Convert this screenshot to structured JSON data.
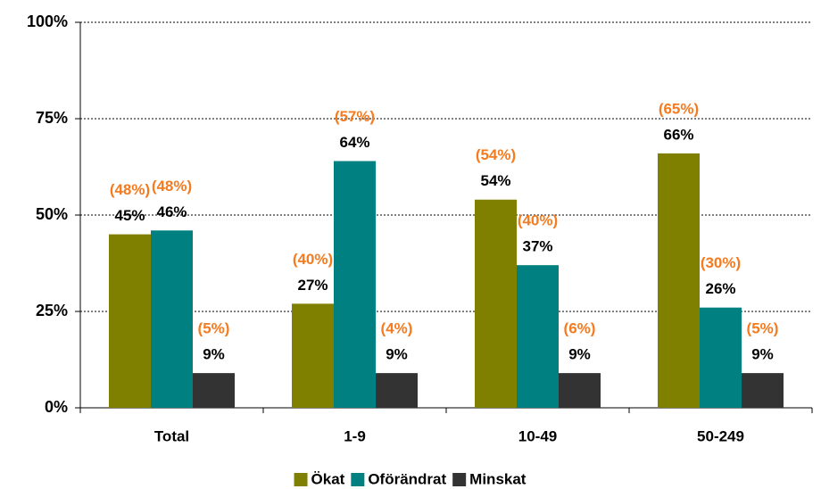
{
  "chart_data": {
    "type": "bar",
    "categories": [
      "Total",
      "1-9",
      "10-49",
      "50-249"
    ],
    "series": [
      {
        "name": "Ökat",
        "color": "#808000",
        "values": [
          45,
          27,
          54,
          66
        ],
        "value_labels": [
          "45%",
          "27%",
          "54%",
          "66%"
        ],
        "comparison_values": [
          48,
          40,
          54,
          65
        ],
        "comparison_labels": [
          "(48%)",
          "(40%)",
          "(54%)",
          "(65%)"
        ]
      },
      {
        "name": "Oförändrat",
        "color": "#008080",
        "values": [
          46,
          64,
          37,
          26
        ],
        "value_labels": [
          "46%",
          "64%",
          "37%",
          "26%"
        ],
        "comparison_values": [
          48,
          57,
          40,
          30
        ],
        "comparison_labels": [
          "(48%)",
          "(57%)",
          "(40%)",
          "(30%)"
        ]
      },
      {
        "name": "Minskat",
        "color": "#333333",
        "values": [
          9,
          9,
          9,
          9
        ],
        "value_labels": [
          "9%",
          "9%",
          "9%",
          "9%"
        ],
        "comparison_values": [
          5,
          4,
          6,
          5
        ],
        "comparison_labels": [
          "(5%)",
          "(4%)",
          "(6%)",
          "(5%)"
        ]
      }
    ],
    "comparison_color": "#f47b20",
    "ylim": [
      0,
      100
    ],
    "yticks": [
      {
        "value": 0,
        "label": "0%"
      },
      {
        "value": 25,
        "label": "25%"
      },
      {
        "value": 50,
        "label": "50%"
      },
      {
        "value": 75,
        "label": "75%"
      },
      {
        "value": 100,
        "label": "100%"
      }
    ],
    "grid": true,
    "legend": "bottom"
  }
}
